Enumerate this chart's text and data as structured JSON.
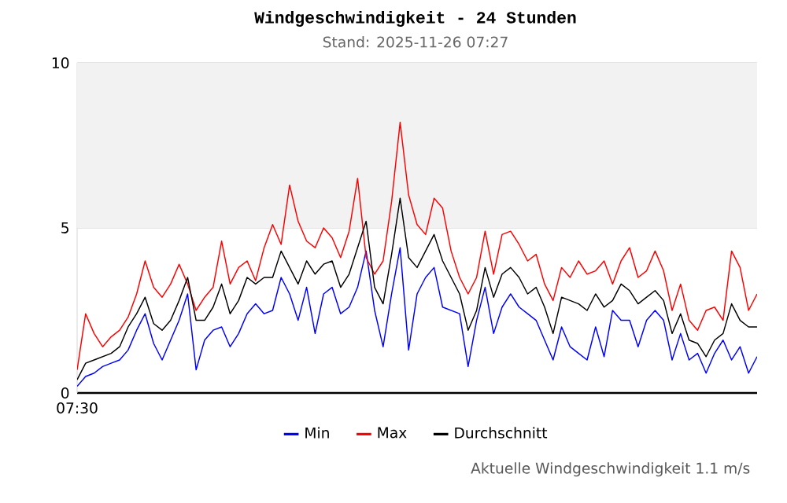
{
  "chart_data": {
    "type": "line",
    "title": "Windgeschwindigkeit - 24 Stunden",
    "subtitle": "Stand: 2025-11-26 07:27",
    "categories": [
      "07:30",
      null,
      null,
      null,
      null,
      null,
      null,
      null,
      null,
      null,
      null,
      null,
      null,
      null,
      null,
      null,
      null,
      null,
      null,
      null,
      null,
      null,
      null,
      null,
      null,
      null,
      null,
      null,
      null,
      null,
      null,
      null,
      null,
      null,
      null,
      null,
      null,
      null,
      null,
      null,
      null,
      null,
      null,
      null,
      null,
      null,
      null,
      null,
      null,
      null,
      null,
      null,
      null,
      null,
      null,
      null,
      null,
      null,
      null,
      null,
      null,
      null,
      null,
      null,
      null,
      null,
      null,
      null,
      null,
      null,
      null,
      null,
      null,
      null,
      null,
      null,
      null,
      null,
      null,
      null,
      null
    ],
    "series": [
      {
        "name": "Min",
        "color": "#0000ff",
        "values": [
          0.2,
          0.5,
          0.6,
          0.8,
          0.9,
          1.0,
          1.3,
          1.9,
          2.4,
          1.5,
          1.0,
          1.6,
          2.2,
          3.0,
          0.7,
          1.6,
          1.9,
          2.0,
          1.4,
          1.8,
          2.4,
          2.7,
          2.4,
          2.5,
          3.5,
          3.0,
          2.2,
          3.2,
          1.8,
          3.0,
          3.2,
          2.4,
          2.6,
          3.2,
          4.3,
          2.5,
          1.4,
          3.0,
          4.4,
          1.3,
          3.0,
          3.5,
          3.8,
          2.6,
          2.5,
          2.4,
          0.8,
          2.2,
          3.2,
          1.8,
          2.6,
          3.0,
          2.6,
          2.4,
          2.2,
          1.6,
          1.0,
          2.0,
          1.4,
          1.2,
          1.0,
          2.0,
          1.1,
          2.5,
          2.2,
          2.2,
          1.4,
          2.2,
          2.5,
          2.2,
          1.0,
          1.8,
          1.0,
          1.2,
          0.6,
          1.2,
          1.6,
          1.0,
          1.4,
          0.6,
          1.1
        ]
      },
      {
        "name": "Max",
        "color": "#ff0000",
        "values": [
          0.7,
          2.4,
          1.8,
          1.4,
          1.7,
          1.9,
          2.3,
          3.0,
          4.0,
          3.2,
          2.9,
          3.3,
          3.9,
          3.3,
          2.5,
          2.9,
          3.2,
          4.6,
          3.3,
          3.8,
          4.0,
          3.4,
          4.4,
          5.1,
          4.5,
          6.3,
          5.2,
          4.6,
          4.4,
          5.0,
          4.7,
          4.1,
          4.9,
          6.5,
          4.1,
          3.6,
          4.0,
          5.8,
          8.2,
          6.0,
          5.1,
          4.8,
          5.9,
          5.6,
          4.3,
          3.5,
          3.0,
          3.5,
          4.9,
          3.6,
          4.8,
          4.9,
          4.5,
          4.0,
          4.2,
          3.3,
          2.8,
          3.8,
          3.5,
          4.0,
          3.6,
          3.7,
          4.0,
          3.3,
          4.0,
          4.4,
          3.5,
          3.7,
          4.3,
          3.7,
          2.5,
          3.3,
          2.2,
          1.9,
          2.5,
          2.6,
          2.2,
          4.3,
          3.8,
          2.5,
          3.0
        ]
      },
      {
        "name": "Durchschnitt",
        "color": "#000000",
        "values": [
          0.4,
          0.9,
          1.0,
          1.1,
          1.2,
          1.4,
          2.0,
          2.4,
          2.9,
          2.1,
          1.9,
          2.2,
          2.8,
          3.5,
          2.2,
          2.2,
          2.6,
          3.3,
          2.4,
          2.8,
          3.5,
          3.3,
          3.5,
          3.5,
          4.3,
          3.8,
          3.3,
          4.0,
          3.6,
          3.9,
          4.0,
          3.2,
          3.6,
          4.4,
          5.2,
          3.2,
          2.7,
          4.2,
          5.9,
          4.1,
          3.8,
          4.3,
          4.8,
          4.0,
          3.5,
          3.0,
          1.9,
          2.5,
          3.8,
          2.9,
          3.6,
          3.8,
          3.5,
          3.0,
          3.2,
          2.6,
          1.8,
          2.9,
          2.8,
          2.7,
          2.5,
          3.0,
          2.6,
          2.8,
          3.3,
          3.1,
          2.7,
          2.9,
          3.1,
          2.8,
          1.8,
          2.4,
          1.6,
          1.5,
          1.1,
          1.6,
          1.8,
          2.7,
          2.2,
          2.0,
          2.0
        ]
      }
    ],
    "ylim": [
      0,
      10
    ],
    "yticks": [
      0,
      5,
      10
    ],
    "bands": [
      {
        "axis": "y",
        "from": 5,
        "to": 10,
        "color": "#f2f2f2"
      }
    ],
    "grid": "y",
    "legend": "bottom",
    "line_style": "solid",
    "marker": "none",
    "annotations": [
      "Aktuelle Windgeschwindigkeit 1.1 m/s"
    ]
  }
}
